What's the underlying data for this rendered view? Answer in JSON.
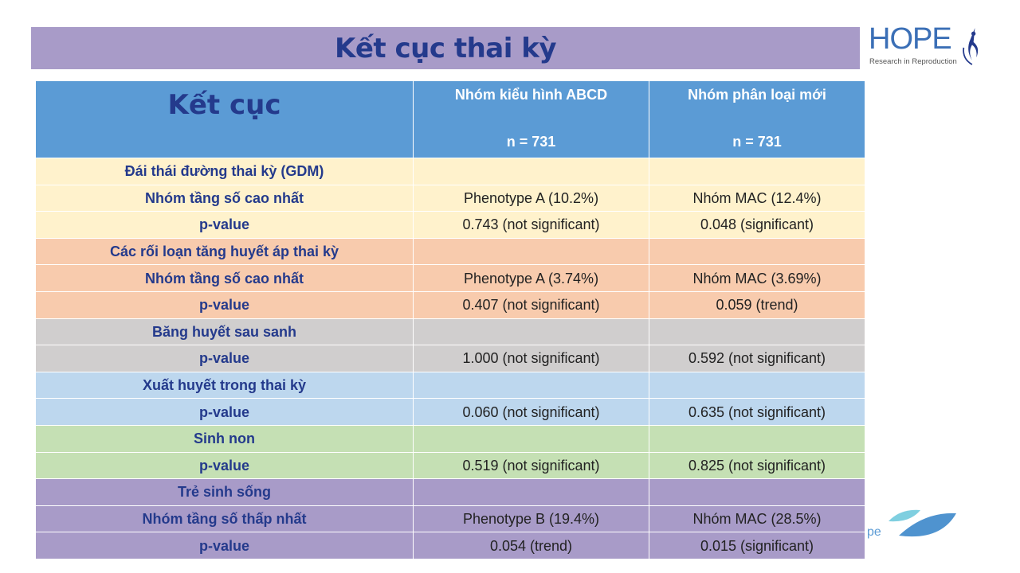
{
  "slide": {
    "title": "Kết cục thai kỳ",
    "logo": {
      "word": "HOPE",
      "tagline": "Research in Reproduction"
    },
    "footer_fragment": "pe",
    "colors": {
      "title_bar": "#a89bc8",
      "header": "#5b9bd5",
      "text_navy": "#243a8c"
    }
  },
  "table": {
    "headers": [
      {
        "label": "Kết cục",
        "n": ""
      },
      {
        "label": "Nhóm kiểu hình ABCD",
        "n": "n = 731"
      },
      {
        "label": "Nhóm phân loại mới",
        "n": "n = 731"
      }
    ],
    "rows": [
      {
        "group": "cream",
        "cells": [
          "Đái thái đường thai kỳ (GDM)",
          "",
          ""
        ]
      },
      {
        "group": "cream",
        "cells": [
          "Nhóm tầng số cao nhất",
          "Phenotype A (10.2%)",
          "Nhóm  MAC (12.4%)"
        ]
      },
      {
        "group": "cream",
        "cells": [
          "p-value",
          "0.743 (not significant)",
          "0.048 (significant)"
        ]
      },
      {
        "group": "peach",
        "cells": [
          "Các rối loạn tăng huyết áp thai kỳ",
          "",
          ""
        ]
      },
      {
        "group": "peach",
        "cells": [
          "Nhóm tầng số cao nhất",
          "Phenotype A (3.74%)",
          "Nhóm  MAC  (3.69%)"
        ]
      },
      {
        "group": "peach",
        "cells": [
          "p-value",
          "0.407 (not significant)",
          "0.059 (trend)"
        ]
      },
      {
        "group": "gray",
        "cells": [
          "Băng huyết sau sanh",
          "",
          ""
        ]
      },
      {
        "group": "gray",
        "cells": [
          "p-value",
          "1.000 (not significant)",
          "0.592 (not significant)"
        ]
      },
      {
        "group": "blue",
        "cells": [
          "Xuất huyết trong thai kỳ",
          "",
          ""
        ]
      },
      {
        "group": "blue",
        "cells": [
          "p-value",
          "0.060 (not significant)",
          "0.635 (not significant)"
        ]
      },
      {
        "group": "green",
        "cells": [
          "Sinh non",
          "",
          ""
        ]
      },
      {
        "group": "green",
        "cells": [
          "p-value",
          "0.519 (not significant)",
          "0.825 (not significant)"
        ]
      },
      {
        "group": "purple",
        "cells": [
          "Trẻ sinh sống",
          "",
          ""
        ]
      },
      {
        "group": "purple",
        "cells": [
          "Nhóm tầng số thấp nhất",
          "Phenotype B (19.4%)",
          "Nhóm  MAC (28.5%)"
        ]
      },
      {
        "group": "purple",
        "cells": [
          "p-value",
          "0.054 (trend)",
          "0.015 (significant)"
        ]
      }
    ]
  }
}
